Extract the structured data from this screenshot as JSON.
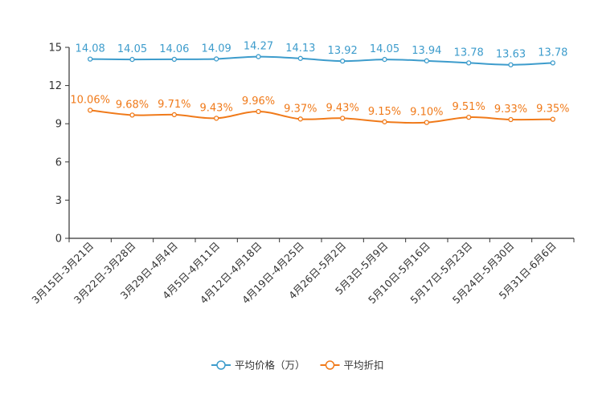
{
  "chart_data": {
    "type": "line",
    "title": "",
    "xlabel": "",
    "ylabel": "",
    "ylim": [
      0,
      15
    ],
    "yticks": [
      0,
      3,
      6,
      9,
      12,
      15
    ],
    "categories": [
      "3月15日-3月21日",
      "3月22日-3月28日",
      "3月29日-4月4日",
      "4月5日-4月11日",
      "4月12日-4月18日",
      "4月19日-4月25日",
      "4月26日-5月2日",
      "5月3日-5月9日",
      "5月10日-5月16日",
      "5月17日-5月23日",
      "5月24日-5月30日",
      "5月31日-6月6日"
    ],
    "series": [
      {
        "name": "平均价格（万）",
        "color": "#3d9ccc",
        "values": [
          14.08,
          14.05,
          14.06,
          14.09,
          14.27,
          14.13,
          13.92,
          14.05,
          13.94,
          13.78,
          13.63,
          13.78
        ],
        "labels": [
          "14.08",
          "14.05",
          "14.06",
          "14.09",
          "14.27",
          "14.13",
          "13.92",
          "14.05",
          "13.94",
          "13.78",
          "13.63",
          "13.78"
        ]
      },
      {
        "name": "平均折扣",
        "color": "#f07a1a",
        "values": [
          10.06,
          9.68,
          9.71,
          9.43,
          9.96,
          9.37,
          9.43,
          9.15,
          9.1,
          9.51,
          9.33,
          9.35
        ],
        "labels": [
          "10.06%",
          "9.68%",
          "9.71%",
          "9.43%",
          "9.96%",
          "9.37%",
          "9.43%",
          "9.15%",
          "9.10%",
          "9.51%",
          "9.33%",
          "9.35%"
        ]
      }
    ],
    "legend_position": "bottom-center",
    "grid": false
  }
}
